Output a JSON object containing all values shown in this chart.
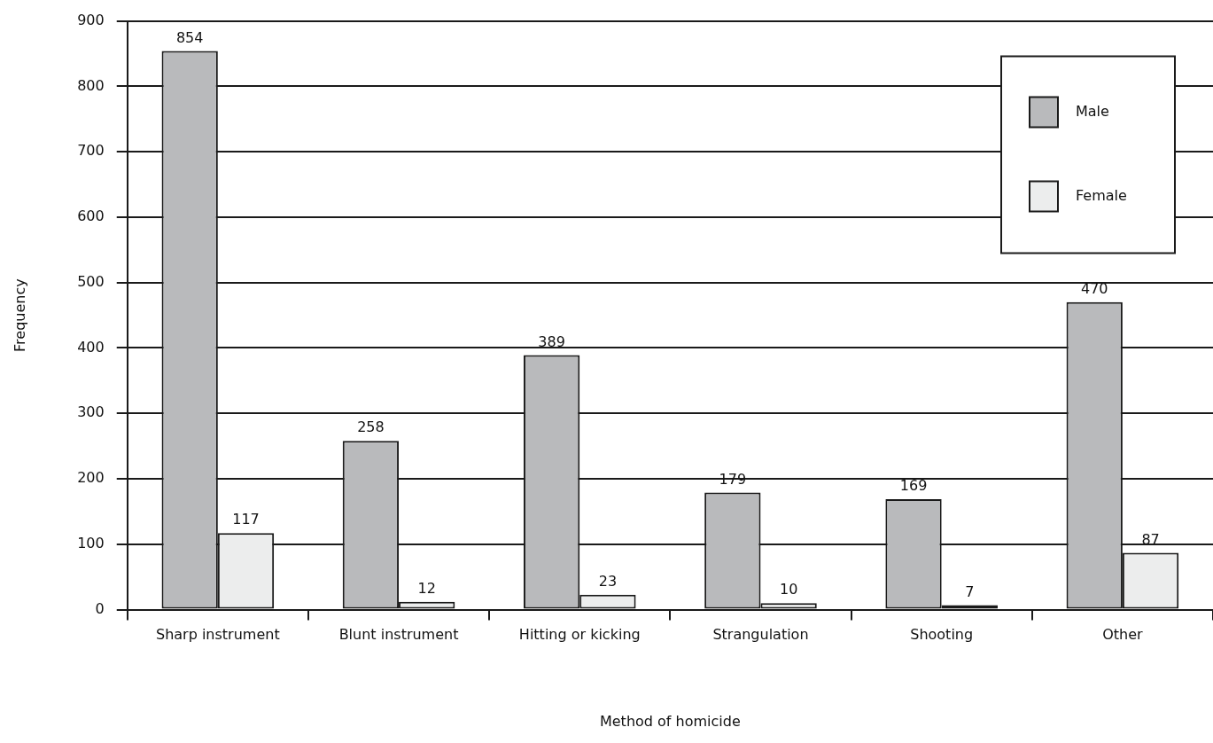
{
  "chart_data": {
    "type": "bar",
    "xlabel": "Method of homicide",
    "ylabel": "Frequency",
    "categories": [
      "Sharp instrument",
      "Blunt instrument",
      "Hitting or kicking",
      "Strangulation",
      "Shooting",
      "Other"
    ],
    "series": [
      {
        "name": "Male",
        "color": "#b9babc",
        "values": [
          854,
          258,
          389,
          179,
          169,
          470
        ]
      },
      {
        "name": "Female",
        "color": "#eceded",
        "values": [
          117,
          12,
          23,
          10,
          7,
          87
        ]
      }
    ],
    "ylim": [
      0,
      900
    ],
    "yticks": [
      0,
      100,
      200,
      300,
      400,
      500,
      600,
      700,
      800,
      900
    ],
    "grid": "y",
    "legend": "top right",
    "data_labels": true
  }
}
